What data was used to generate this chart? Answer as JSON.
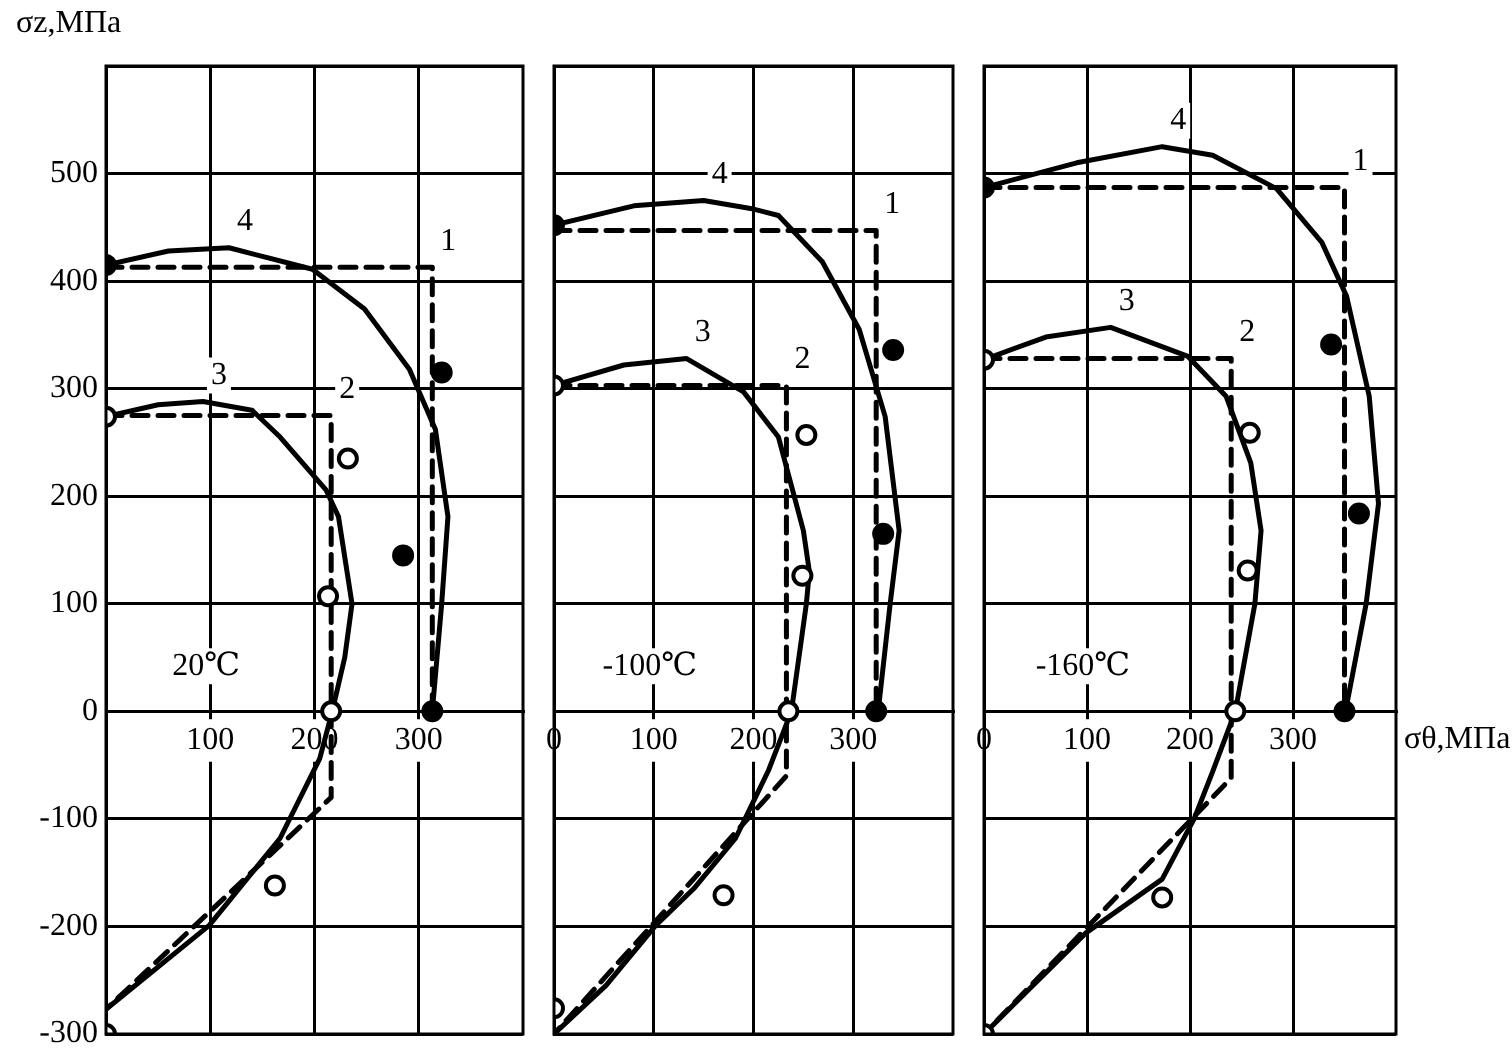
{
  "chart_data": [
    {
      "type": "line",
      "ylabel": "σz,МПа",
      "annotations": [
        "20℃"
      ],
      "xlim": [
        0,
        400
      ],
      "ylim": [
        -300,
        600
      ],
      "xticks": [
        100,
        200,
        300
      ],
      "yticks": [
        -300,
        -200,
        -100,
        0,
        100,
        200,
        300,
        400,
        500,
        {
          "value": 600,
          "label": null
        }
      ],
      "grid": true,
      "series": [
        {
          "name": "1",
          "color": "#000000",
          "line_style": "dashed",
          "marker": "none",
          "x": [
            0,
            313,
            313
          ],
          "values": [
            413,
            413,
            0
          ]
        },
        {
          "name": "2",
          "color": "#000000",
          "line_style": "dashed",
          "marker": "none",
          "x": [
            0,
            216,
            216,
            0
          ],
          "values": [
            275,
            275,
            -80,
            -277
          ]
        },
        {
          "name": "3",
          "color": "#000000",
          "line_style": "solid",
          "marker": "none",
          "x": [
            0,
            50,
            93,
            140,
            167,
            211,
            223,
            236,
            229,
            217,
            205,
            167,
            99,
            0
          ],
          "values": [
            274,
            285,
            288,
            280,
            255,
            206,
            181,
            100,
            50,
            0,
            -44,
            -118,
            -199,
            -277
          ]
        },
        {
          "name": "4",
          "color": "#000000",
          "line_style": "solid",
          "marker": "none",
          "x": [
            0,
            60,
            118,
            198,
            248,
            291,
            316,
            328,
            322,
            313
          ],
          "values": [
            415,
            428,
            431,
            411,
            374,
            318,
            262,
            181,
            100,
            0
          ]
        },
        {
          "type": "scatter",
          "color": "#000000",
          "marker": "circle",
          "x": [
            0,
            322,
            285,
            313
          ],
          "values": [
            415,
            315,
            145,
            0
          ]
        },
        {
          "type": "scatter",
          "color": "#ffffff",
          "marker": "circle",
          "x": [
            0,
            232,
            213,
            216,
            162,
            0
          ],
          "values": [
            274,
            235,
            107,
            0,
            -162,
            -300
          ]
        }
      ]
    },
    {
      "type": "line",
      "annotations": [
        "-100℃"
      ],
      "xlim": [
        0,
        400
      ],
      "ylim": [
        -300,
        600
      ],
      "xticks": [
        0,
        100,
        200,
        300
      ],
      "yticks": [
        -300,
        -200,
        -100,
        0,
        100,
        200,
        300,
        400,
        500,
        600
      ],
      "tick_labels": "x",
      "grid": true,
      "series": [
        {
          "name": "1",
          "color": "#000000",
          "line_style": "dashed",
          "marker": "none",
          "x": [
            0,
            323,
            323
          ],
          "values": [
            447,
            447,
            0
          ]
        },
        {
          "name": "2",
          "color": "#000000",
          "line_style": "dashed",
          "marker": "none",
          "x": [
            0,
            233,
            233,
            0
          ],
          "values": [
            303,
            303,
            -60,
            -300
          ]
        },
        {
          "name": "3",
          "color": "#000000",
          "line_style": "solid",
          "marker": "none",
          "x": [
            0,
            70,
            133,
            190,
            225,
            250,
            256,
            253,
            238,
            215,
            182,
            140,
            102,
            52,
            0
          ],
          "values": [
            303,
            322,
            328,
            297,
            255,
            168,
            130,
            100,
            0,
            -55,
            -118,
            -165,
            -199,
            -255,
            -300
          ]
        },
        {
          "name": "4",
          "color": "#000000",
          "line_style": "solid",
          "marker": "none",
          "x": [
            0,
            80,
            150,
            200,
            225,
            269,
            306,
            332,
            346,
            337,
            325
          ],
          "values": [
            452,
            470,
            475,
            467,
            461,
            418,
            355,
            274,
            168,
            100,
            0
          ]
        },
        {
          "type": "scatter",
          "color": "#000000",
          "marker": "circle",
          "x": [
            0,
            340,
            330,
            323
          ],
          "values": [
            452,
            336,
            165,
            0
          ]
        },
        {
          "type": "scatter",
          "color": "#ffffff",
          "marker": "circle",
          "x": [
            0,
            253,
            249,
            235,
            170,
            0
          ],
          "values": [
            303,
            257,
            126,
            0,
            -171,
            -276
          ]
        }
      ]
    },
    {
      "type": "line",
      "xlabel": "σθ,МПа",
      "annotations": [
        "-160℃"
      ],
      "xlim": [
        0,
        400
      ],
      "ylim": [
        -300,
        600
      ],
      "xticks": [
        0,
        100,
        200,
        300
      ],
      "yticks": [
        -300,
        -200,
        -100,
        0,
        100,
        200,
        300,
        400,
        500,
        600
      ],
      "tick_labels": "x",
      "grid": true,
      "series": [
        {
          "name": "1",
          "color": "#000000",
          "line_style": "dashed",
          "marker": "none",
          "x": [
            0,
            350,
            350
          ],
          "values": [
            487,
            487,
            0
          ]
        },
        {
          "name": "2",
          "color": "#000000",
          "line_style": "dashed",
          "marker": "none",
          "x": [
            0,
            240,
            240,
            0
          ],
          "values": [
            328,
            328,
            -62,
            -300
          ]
        },
        {
          "name": "3",
          "color": "#000000",
          "line_style": "solid",
          "marker": "none",
          "x": [
            0,
            60,
            123,
            198,
            235,
            259,
            269,
            263,
            244,
            222,
            204,
            173,
            99,
            0
          ],
          "values": [
            327,
            348,
            357,
            330,
            293,
            231,
            168,
            100,
            0,
            -56,
            -100,
            -156,
            -206,
            -300
          ]
        },
        {
          "name": "4",
          "color": "#000000",
          "line_style": "solid",
          "marker": "none",
          "x": [
            0,
            90,
            173,
            222,
            284,
            328,
            352,
            374,
            383,
            371,
            351
          ],
          "values": [
            487,
            510,
            525,
            517,
            486,
            436,
            386,
            293,
            193,
            100,
            0
          ]
        },
        {
          "type": "scatter",
          "color": "#000000",
          "marker": "circle",
          "x": [
            0,
            337,
            364,
            350
          ],
          "values": [
            487,
            341,
            184,
            0
          ]
        },
        {
          "type": "scatter",
          "color": "#ffffff",
          "marker": "circle",
          "x": [
            0,
            258,
            256,
            244,
            173,
            0
          ],
          "values": [
            327,
            259,
            131,
            0,
            -173,
            -300
          ]
        }
      ]
    }
  ]
}
